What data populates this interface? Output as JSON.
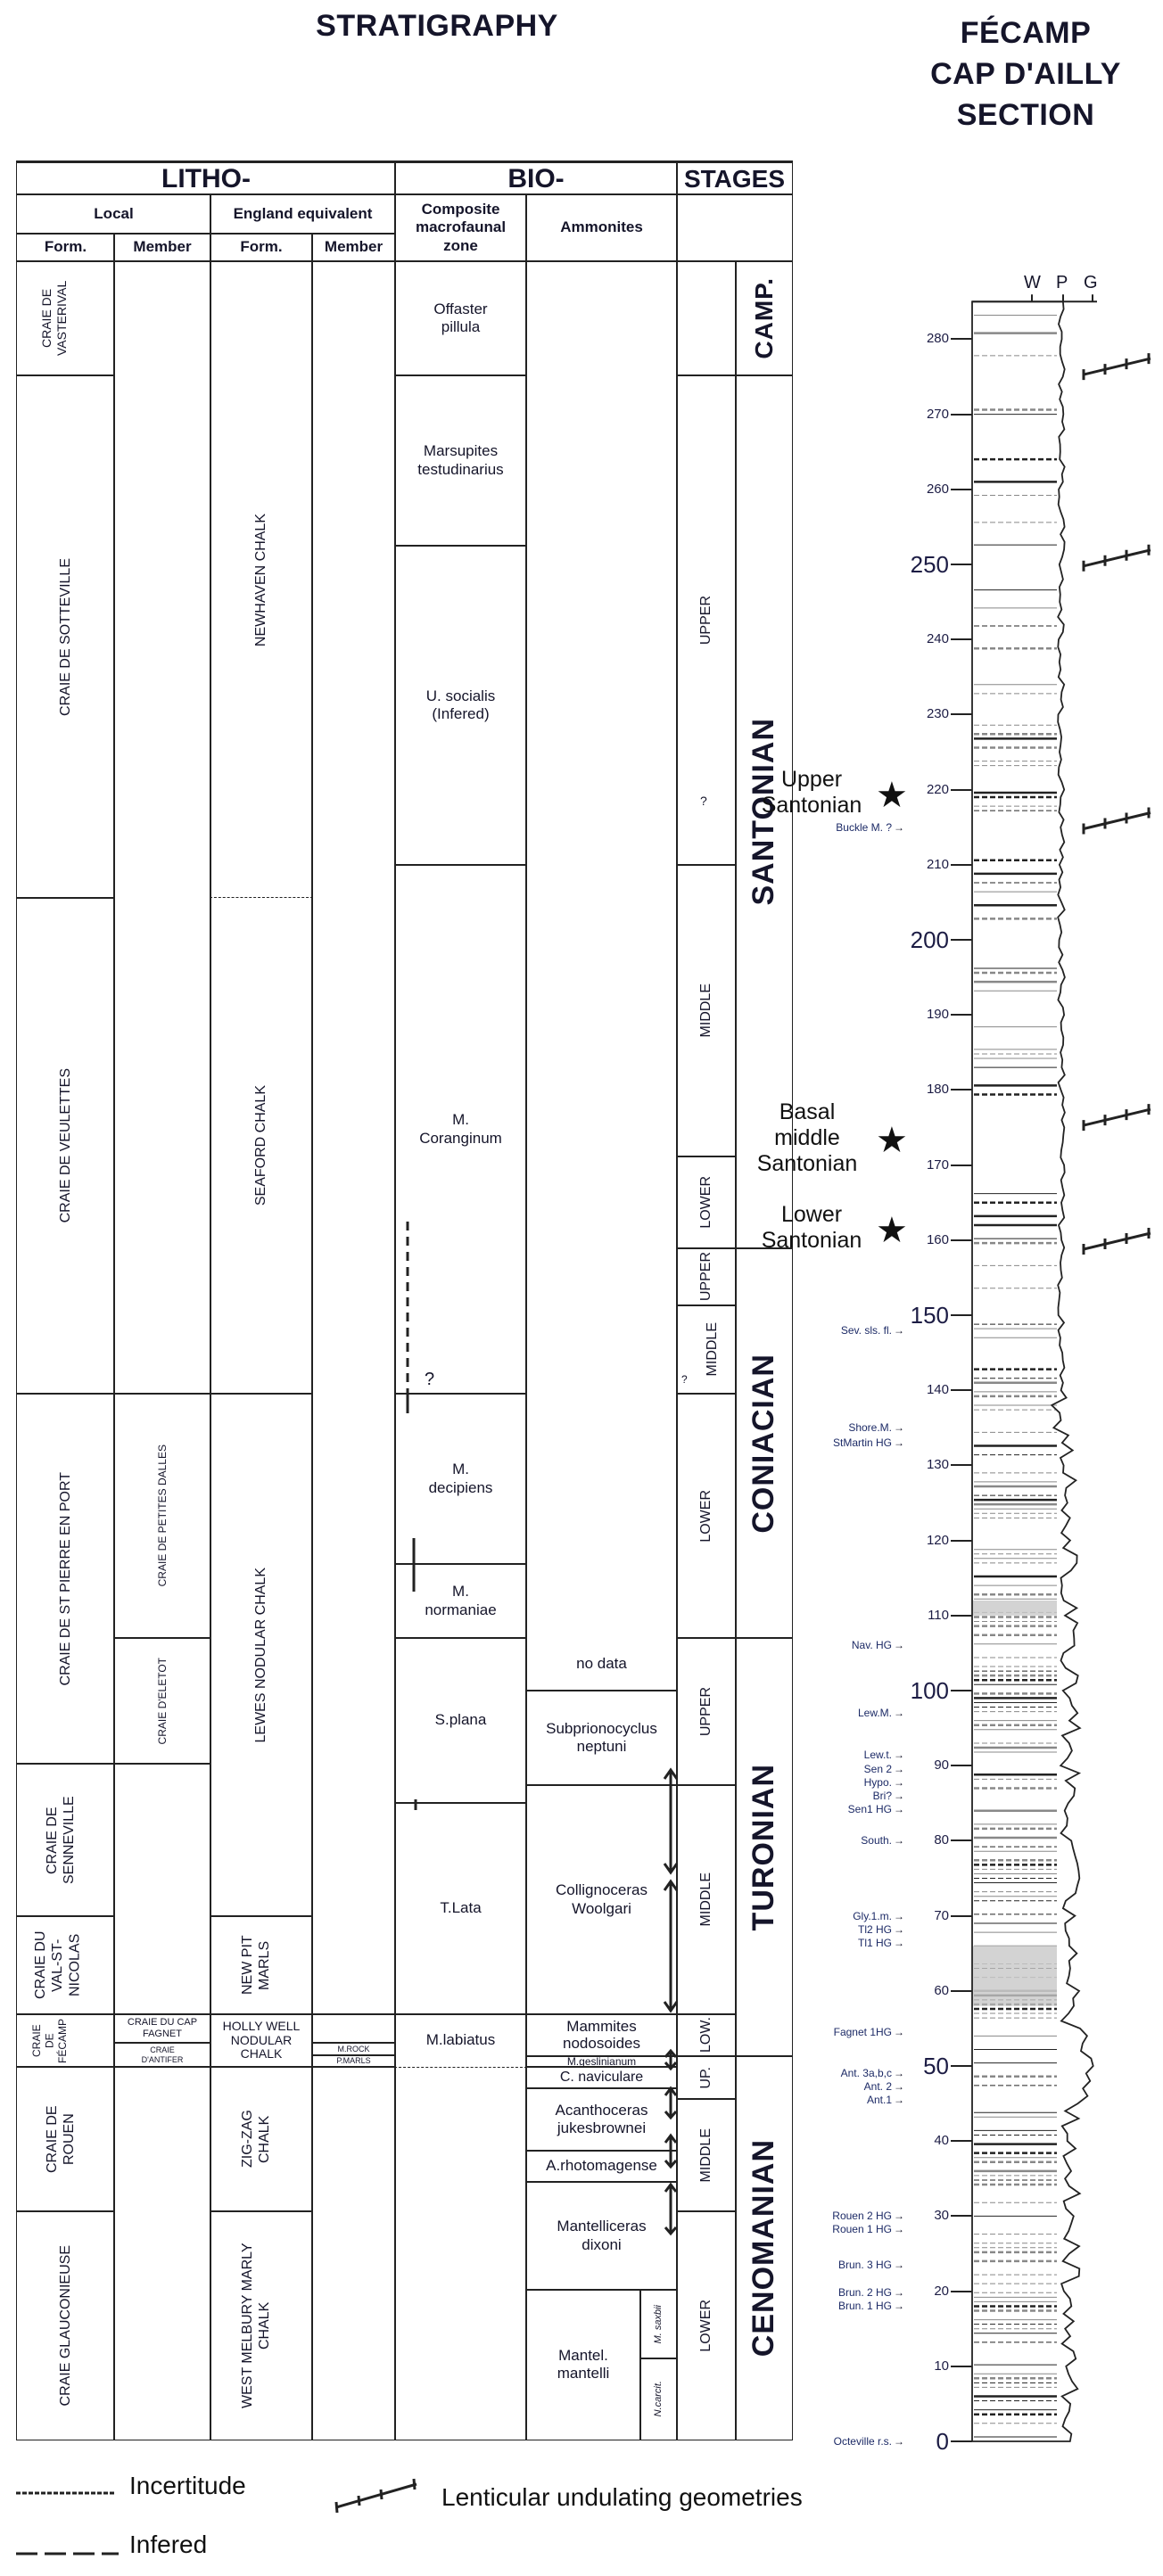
{
  "titles": {
    "left": "STRATIGRAPHY",
    "right_lines": [
      "FÉCAMP",
      "CAP D'AILLY",
      "SECTION"
    ]
  },
  "table": {
    "headers": {
      "litho": "LITHO-",
      "bio": "BIO-",
      "stages": "STAGES",
      "local": "Local",
      "england": "England equivalent",
      "form": "Form.",
      "member": "Member",
      "composite": "Composite macrofaunal zone",
      "ammonites": "Ammonites"
    },
    "local_formations": [
      "CRAIE DE VASTERIVAL",
      "CRAIE DE SOTTEVILLE",
      "CRAIE DE VEULETTES",
      "CRAIE DE ST PIERRE EN PORT",
      "CRAIE DE SENNEVILLE",
      "CRAIE DU VAL-ST-NICOLAS",
      "CRAIE DE FÉCAMP",
      "CRAIE DE ROUEN",
      "CRAIE GLAUCONIEUSE"
    ],
    "local_members": [
      "CRAIE DE PETITES DALLES",
      "CRAIE D'ELETOT",
      "CRAIE DU CAP FAGNET",
      "CRAIE D'ANTIFER"
    ],
    "england_formations": [
      "NEWHAVEN CHALK",
      "SEAFORD CHALK",
      "LEWES NODULAR CHALK",
      "NEW PIT MARLS",
      "HOLLY WELL NODULAR CHALK",
      "ZIG-ZAG CHALK",
      "WEST MELBURY MARLY CHALK"
    ],
    "england_members": [
      "M.ROCK",
      "P.MARLS"
    ],
    "composite_zones": [
      "Offaster pillula",
      "Marsupites testudinarius",
      "U. socialis (Infered)",
      "M. Coranginum",
      "M. decipiens",
      "M. normaniae",
      "S.plana",
      "T.Lata",
      "M.labiatus"
    ],
    "composite_question": "?",
    "ammonites": [
      "no data",
      "Subprionocyclus neptuni",
      "Collignoceras Woolgari",
      "Mammites nodosoides",
      "M.geslinianum",
      "C. naviculare",
      "Acanthoceras jukesbrownei",
      "A.rhotomagense",
      "Mantelliceras dixoni",
      "Mantel. mantelli",
      "M. saxbii",
      "N.carcit."
    ],
    "substages": [
      "UPPER",
      "?",
      "MIDDLE",
      "LOWER",
      "UPPER",
      "MIDDLE",
      "?",
      "LOWER",
      "UPPER",
      "MIDDLE",
      "LOW.",
      "UP.",
      "MIDDLE",
      "LOWER"
    ],
    "stages": [
      "CAMP.",
      "SANTONIAN",
      "CONIACIAN",
      "TURONIAN",
      "CENOMANIAN"
    ]
  },
  "section": {
    "grain_scale": [
      "W",
      "P",
      "G"
    ],
    "depth_unit": "m",
    "depth_ticks": [
      0,
      10,
      20,
      30,
      40,
      50,
      60,
      70,
      80,
      90,
      100,
      110,
      120,
      130,
      140,
      150,
      160,
      170,
      180,
      190,
      200,
      210,
      220,
      230,
      240,
      250,
      260,
      270,
      280
    ],
    "major_ticks": [
      50,
      100,
      150,
      200,
      250
    ],
    "markers": [
      {
        "label": "Buckle M. ?",
        "depth": 215
      },
      {
        "label": "Sev. sls. fl.",
        "depth": 148
      },
      {
        "label": "Shore.M.",
        "depth": 135
      },
      {
        "label": "StMartin HG",
        "depth": 133
      },
      {
        "label": "Nav. HG",
        "depth": 106
      },
      {
        "label": "Lew.M.",
        "depth": 97
      },
      {
        "label": "Lew.t.",
        "depth": 91.5
      },
      {
        "label": "Sen 2",
        "depth": 89.5
      },
      {
        "label": "Hypo.",
        "depth": 88
      },
      {
        "label": "Bri?",
        "depth": 86.8
      },
      {
        "label": "Sen1 HG",
        "depth": 85.5
      },
      {
        "label": "South.",
        "depth": 80
      },
      {
        "label": "Gly.1.m.",
        "depth": 70
      },
      {
        "label": "Tl2 HG",
        "depth": 68.2
      },
      {
        "label": "Tl1 HG",
        "depth": 66.6
      },
      {
        "label": "Fagnet 1HG",
        "depth": 54.5
      },
      {
        "label": "Ant. 3a,b,c",
        "depth": 49
      },
      {
        "label": "Ant. 2",
        "depth": 47.6
      },
      {
        "label": "Ant.1",
        "depth": 46.2
      },
      {
        "label": "Rouen 2 HG",
        "depth": 30
      },
      {
        "label": "Rouen 1 HG",
        "depth": 28.3
      },
      {
        "label": "Brun. 3 HG",
        "depth": 23.5
      },
      {
        "label": "Brun. 2 HG",
        "depth": 19.8
      },
      {
        "label": "Brun. 1 HG",
        "depth": 18
      },
      {
        "label": "Octeville r.s.",
        "depth": 0
      }
    ],
    "star_zones": [
      {
        "label": "Upper Santonian",
        "depth": 219
      },
      {
        "label": "Basal middle Santonian",
        "depth": 173
      },
      {
        "label": "Lower Santonian",
        "depth": 161
      }
    ],
    "lenticular_depths": [
      276,
      250.5,
      215.5,
      176,
      159.5
    ]
  },
  "legend": {
    "incertitude": "Incertitude",
    "infered": "Infered",
    "lenticular": "Lenticular undulating geometries"
  },
  "colors": {
    "text": "#15152a",
    "marker_text": "#1c2a66",
    "lines": "#222222",
    "grey_bed": "#c8c8c8"
  }
}
